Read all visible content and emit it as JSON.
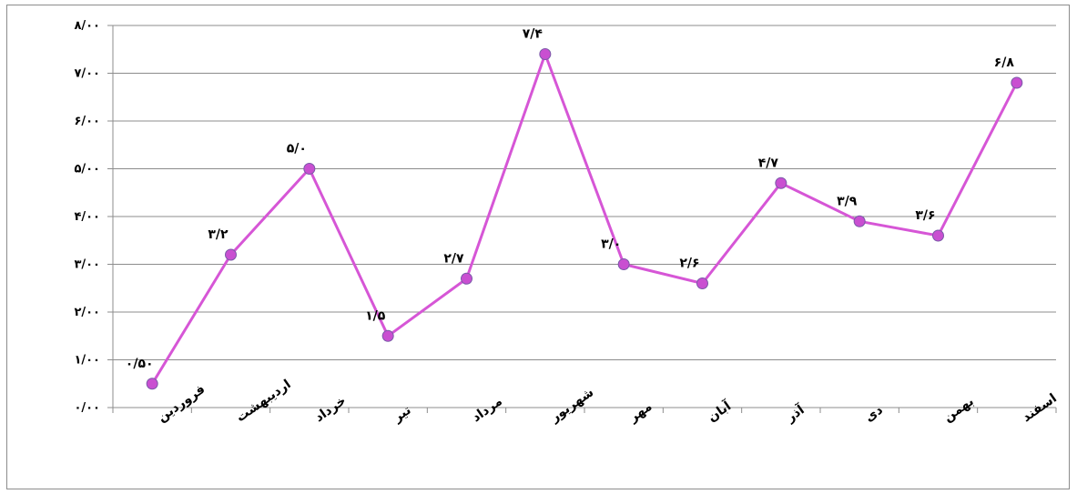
{
  "chart_data": {
    "type": "line",
    "title": "",
    "xlabel": "",
    "ylabel": "",
    "ylim": [
      0,
      8
    ],
    "grid": true,
    "legend": "none",
    "y_ticks": [
      0,
      1,
      2,
      3,
      4,
      5,
      6,
      7,
      8
    ],
    "y_tick_labels": [
      "۰/۰۰",
      "۱/۰۰",
      "۲/۰۰",
      "۳/۰۰",
      "۴/۰۰",
      "۵/۰۰",
      "۶/۰۰",
      "۷/۰۰",
      "۸/۰۰"
    ],
    "categories": [
      "فروردین",
      "اردیبهشت",
      "خرداد",
      "تیر",
      "مرداد",
      "شهریور",
      "مهر",
      "آبان",
      "آذر",
      "دی",
      "بهمن",
      "اسفند"
    ],
    "series": [
      {
        "values": [
          0.5,
          3.2,
          5.0,
          1.5,
          2.7,
          7.4,
          3.0,
          2.6,
          4.7,
          3.9,
          3.6,
          6.8
        ],
        "data_labels": [
          "۰/۵۰",
          "۳/۲",
          "۵/۰",
          "۱/۵",
          "۲/۷",
          "۷/۴",
          "۳/۰",
          "۲/۶",
          "۴/۷",
          "۳/۹",
          "۳/۶",
          "۶/۸"
        ],
        "color": "#d656d6",
        "marker_color": "#c94fd1",
        "marker_stroke": "#7a5aa8"
      }
    ],
    "colors": {
      "grid": "#8c8c8c",
      "axis": "#8c8c8c"
    }
  }
}
